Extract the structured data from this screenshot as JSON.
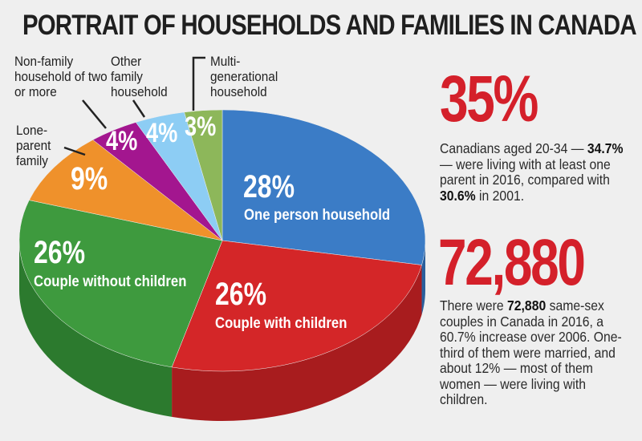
{
  "chart_data": {
    "type": "pie",
    "title": "PORTRAIT OF HOUSEHOLDS AND FAMILIES IN CANADA",
    "slices": [
      {
        "label": "One person household",
        "value": 28,
        "display": "28%",
        "color": "#3b7cc6",
        "side": "#2a5f9c"
      },
      {
        "label": "Couple with children",
        "value": 26,
        "display": "26%",
        "color": "#d42628",
        "side": "#a81c1e"
      },
      {
        "label": "Couple without children",
        "value": 26,
        "display": "26%",
        "color": "#3e9a3e",
        "side": "#2c7a2e"
      },
      {
        "label": "Lone-parent family",
        "value": 9,
        "display": "9%",
        "color": "#ef912b",
        "side": "#c0711c"
      },
      {
        "label": "Non-family household of two or more",
        "value": 4,
        "display": "4%",
        "color": "#a3168f",
        "side": "#7a0f6b"
      },
      {
        "label": "Other family household",
        "value": 4,
        "display": "4%",
        "color": "#8dcdf4",
        "side": "#6aa8d0"
      },
      {
        "label": "Multi-generational household",
        "value": 3,
        "display": "3%",
        "color": "#8db75a",
        "side": "#6c9442"
      }
    ],
    "legend": "callouts"
  },
  "stat1": {
    "number": "35%",
    "text_a": "Canadians aged 20-34 — ",
    "bold_a": "34.7%",
    "text_b": " — were living with at least one parent in 2016, compared with ",
    "bold_b": "30.6%",
    "text_c": " in 2001."
  },
  "stat2": {
    "number": "72,880",
    "text_a": "There were ",
    "bold_a": "72,880",
    "text_b": " same-sex couples in Canada in 2016, a 60.7% increase over 2006. One-third of them were married, and about 12% — most of them women — were living with children."
  },
  "callouts": {
    "nonfamily": "Non-family household of two or more",
    "other": "Other family household",
    "multi": "Multi-generational household",
    "lone": "Lone-parent family"
  }
}
